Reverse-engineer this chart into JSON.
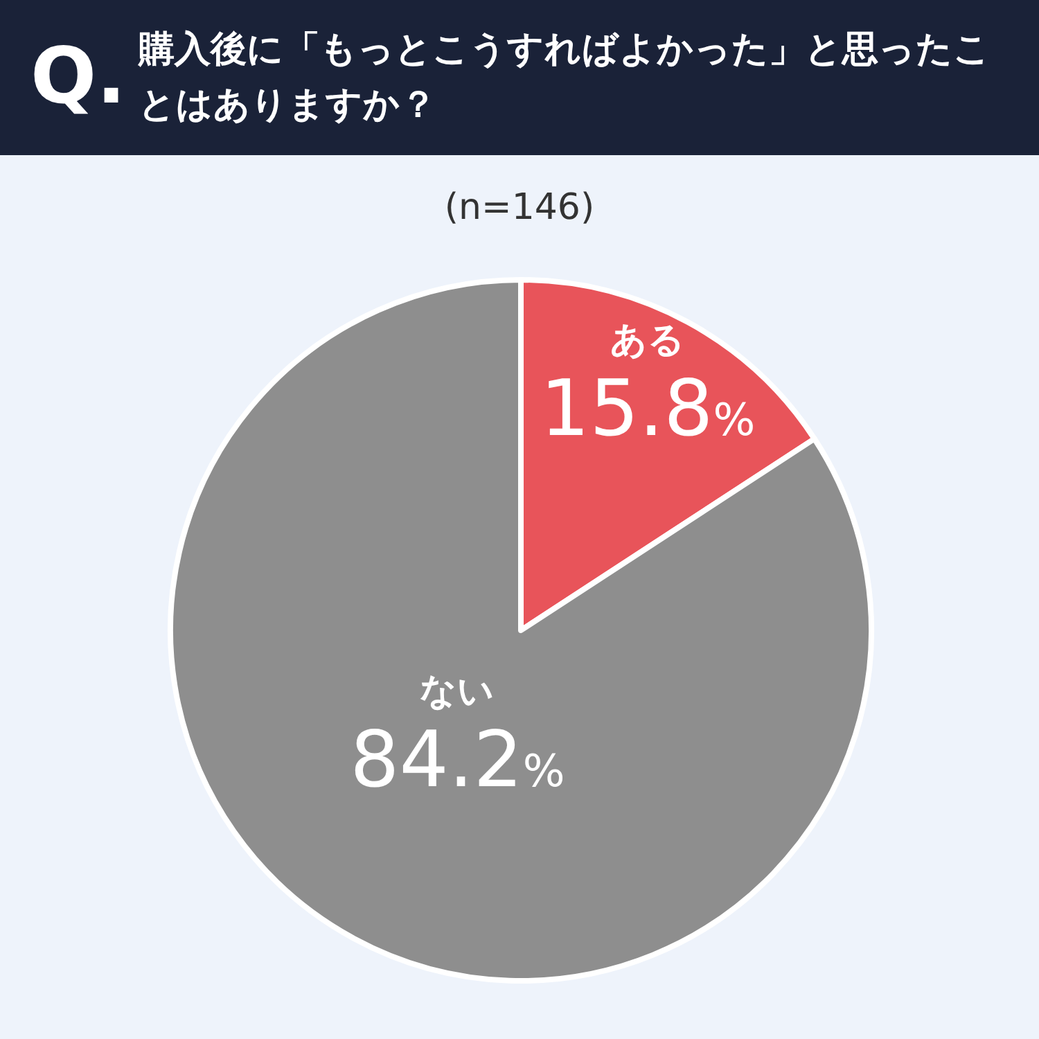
{
  "chart_data": {
    "type": "pie",
    "title": "購入後に「もっとこうすればよかった」と思ったことはありますか？",
    "subtitle": "(n=146)",
    "annotations": [
      "Q."
    ],
    "categories": [
      "ある",
      "ない"
    ],
    "values": [
      15.8,
      84.2
    ],
    "value_labels": [
      "15.8%",
      "84.2%"
    ],
    "colors": [
      "#e8545a",
      "#8e8e8e"
    ]
  }
}
